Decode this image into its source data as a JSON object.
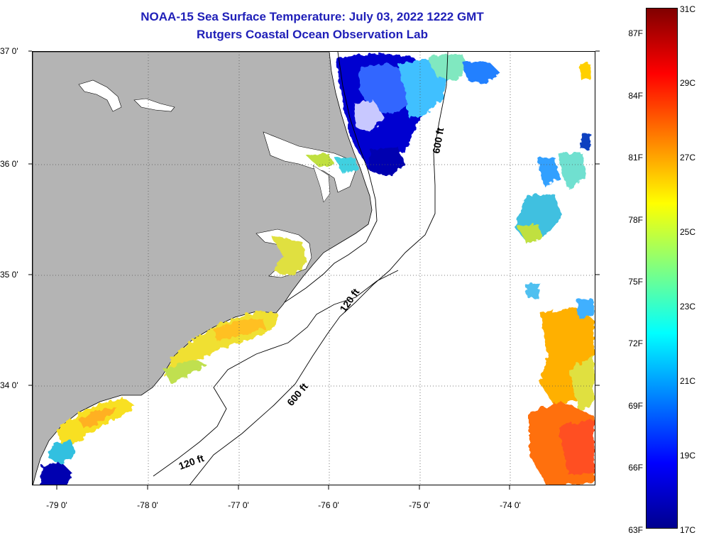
{
  "header": {
    "title": "NOAA-15 Sea Surface Temperature:  July 03, 2022 1222 GMT",
    "subtitle": "Rutgers Coastal Ocean Observation Lab"
  },
  "map": {
    "region": "Mid-Atlantic / Carolina coast",
    "lat_labels": [
      "37 0'",
      "36 0'",
      "35 0'",
      "34 0'"
    ],
    "lon_labels": [
      "-79 0'",
      "-78 0'",
      "-77 0'",
      "-76 0'",
      "-75 0'",
      "-74 0'"
    ],
    "contours": [
      {
        "label": "120 ft"
      },
      {
        "label": "600 ft"
      },
      {
        "label": "600 ft"
      },
      {
        "label": "120 ft"
      }
    ],
    "land_color": "#b4b4b4",
    "no_data_color": "#ffffff"
  },
  "colorbar": {
    "fahrenheit": [
      "87F",
      "84F",
      "81F",
      "78F",
      "75F",
      "72F",
      "69F",
      "66F",
      "63F"
    ],
    "celsius": [
      "31C",
      "29C",
      "27C",
      "25C",
      "23C",
      "21C",
      "19C",
      "17C"
    ],
    "range_c": [
      17,
      31
    ],
    "colors": [
      "#00008f",
      "#0000ff",
      "#0080ff",
      "#00ffff",
      "#80ff80",
      "#ffff00",
      "#ff8000",
      "#ff0000",
      "#800000"
    ]
  }
}
